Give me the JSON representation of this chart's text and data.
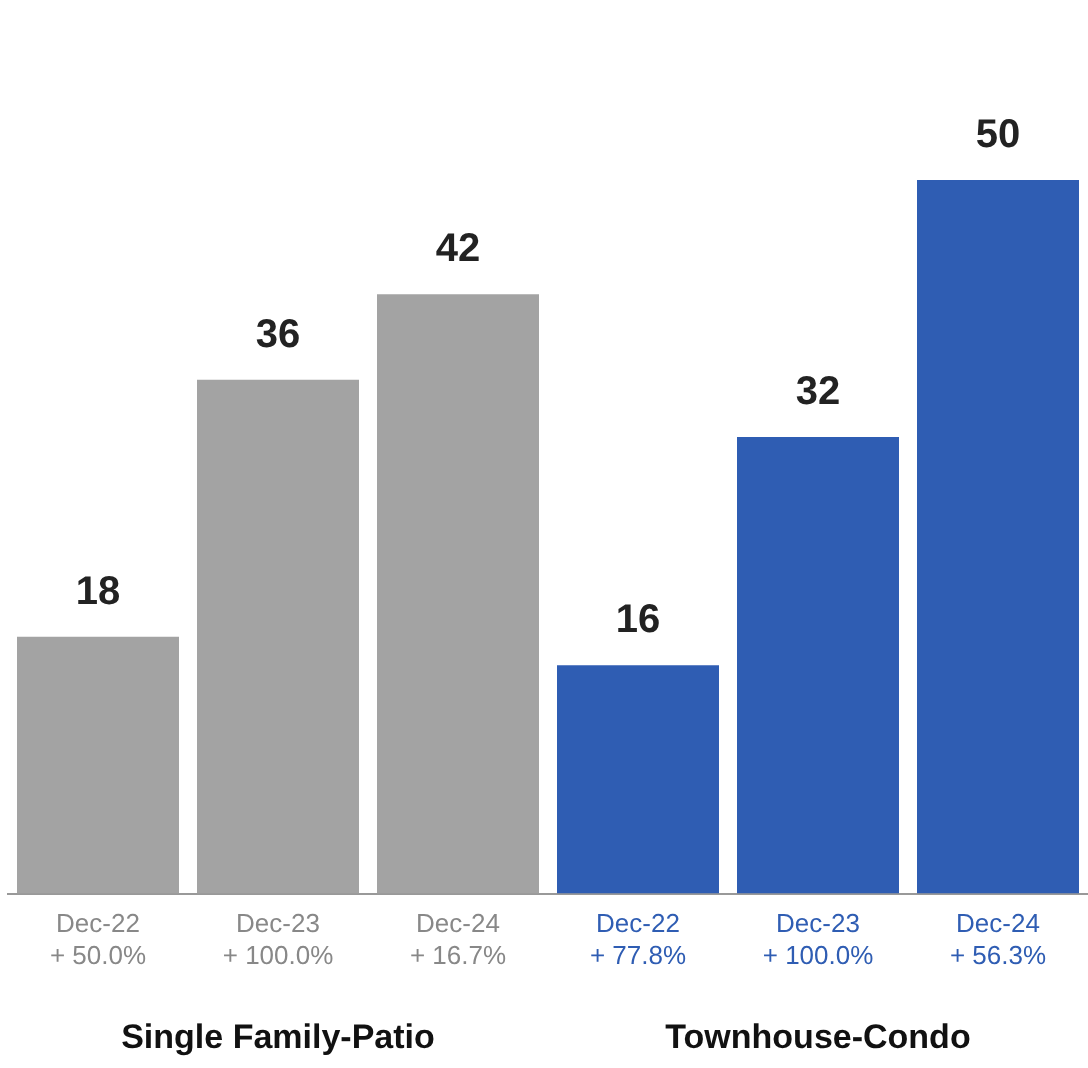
{
  "chart_data": {
    "type": "bar",
    "categories": [
      "Dec-22\n+ 50.0%",
      "Dec-23\n+ 100.0%",
      "Dec-24\n+ 16.7%",
      "Dec-22\n+ 77.8%",
      "Dec-23\n+ 100.0%",
      "Dec-24\n+ 56.3%"
    ],
    "values": [
      18,
      36,
      42,
      16,
      32,
      50
    ],
    "colors": [
      "#a3a3a3",
      "#a3a3a3",
      "#a3a3a3",
      "#2f5db3",
      "#2f5db3",
      "#2f5db3"
    ],
    "data_labels": true,
    "annotations": [
      "Single Family-Patio",
      "Townhouse-Condo"
    ],
    "grid": false,
    "legend": false
  }
}
